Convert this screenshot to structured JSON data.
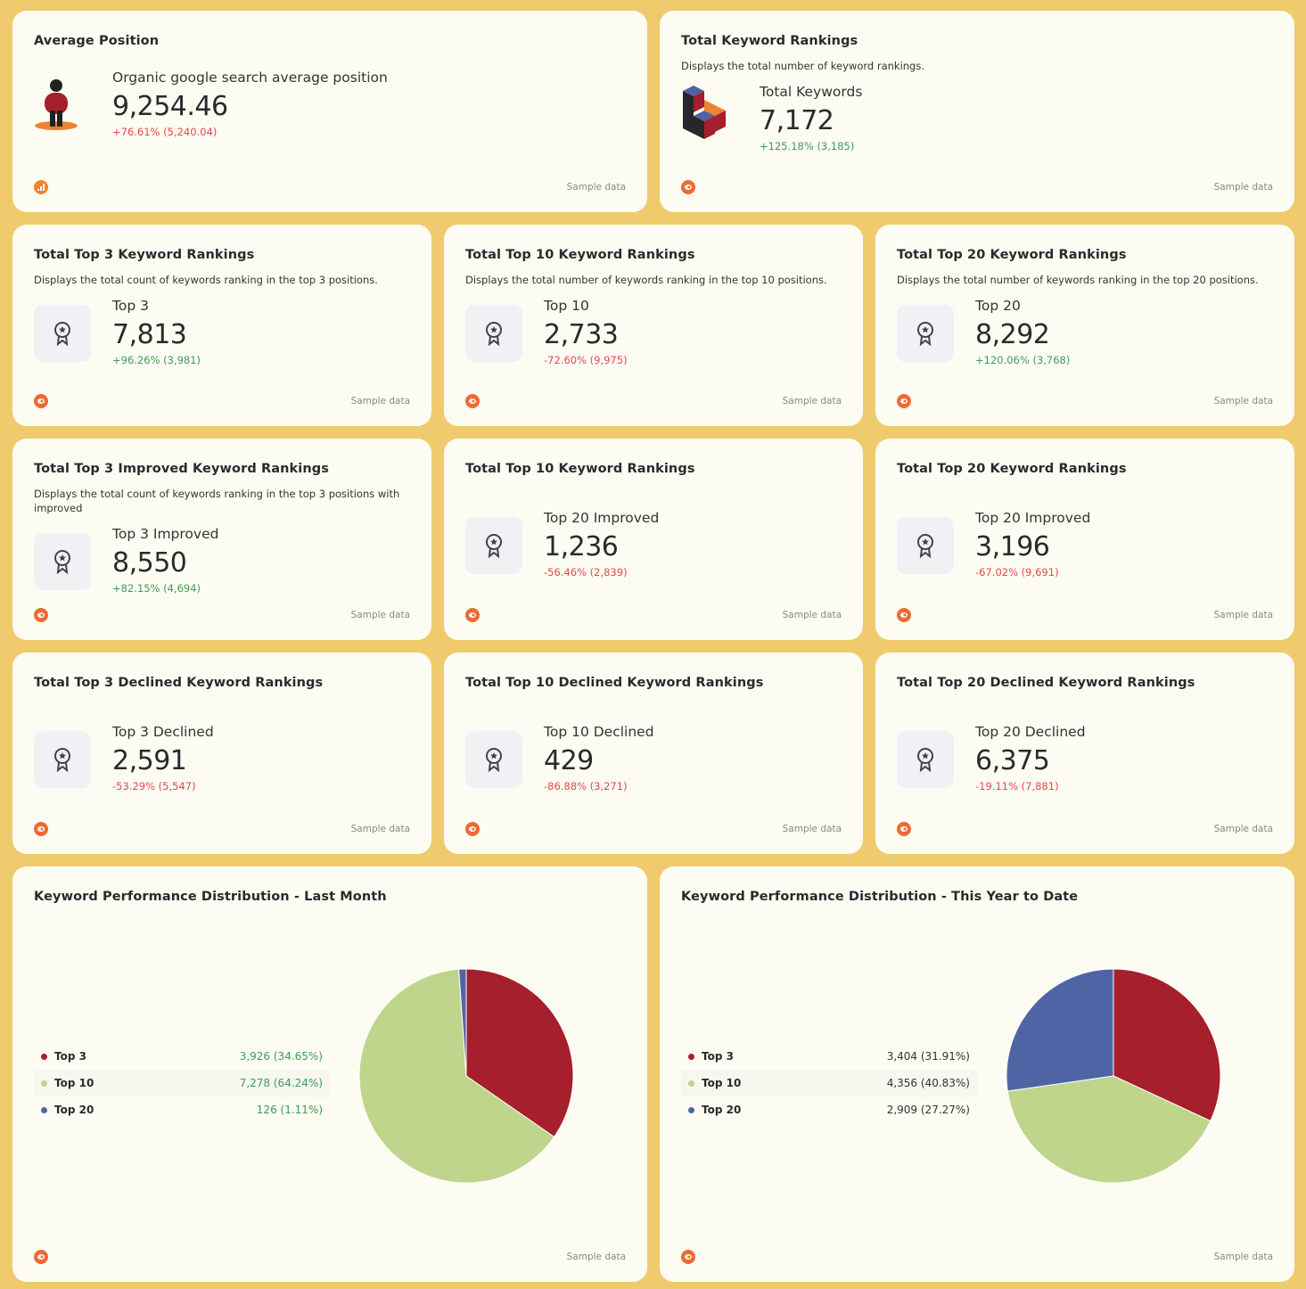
{
  "colors": {
    "top3": "#a51f2c",
    "top10": "#bed58b",
    "top20": "#4f64a4",
    "positive": "#3f9b5a",
    "negative": "#e5484d",
    "brand": "#ef6a33"
  },
  "footer_label": "Sample data",
  "cards": [
    {
      "title": "Average Position",
      "description": "",
      "label": "Organic google search average position",
      "value": "9,254.46",
      "change": "+76.61% (5,240.04)",
      "trend": "negative",
      "icon": "person-standing-icon",
      "brand_icon": "analytics-icon"
    },
    {
      "title": "Total Keyword Rankings",
      "description": "Displays the total number of keyword rankings.",
      "label": "Total Keywords",
      "value": "7,172",
      "change": "+125.18% (3,185)",
      "trend": "positive",
      "icon": "blocks-icon",
      "brand_icon": "semrush-icon"
    },
    {
      "title": "Total Top 3 Keyword Rankings",
      "description": "Displays the total count of keywords ranking in the top 3 positions.",
      "label": "Top 3",
      "value": "7,813",
      "change": "+96.26% (3,981)",
      "trend": "positive",
      "icon": "award-icon",
      "brand_icon": "semrush-icon"
    },
    {
      "title": "Total Top 10 Keyword Rankings",
      "description": "Displays the total number of keywords ranking in the top 10 positions.",
      "label": "Top 10",
      "value": "2,733",
      "change": "-72.60% (9,975)",
      "trend": "negative",
      "icon": "award-icon",
      "brand_icon": "semrush-icon"
    },
    {
      "title": "Total Top 20 Keyword Rankings",
      "description": "Displays the total number of keywords ranking in the top 20 positions.",
      "label": "Top 20",
      "value": "8,292",
      "change": "+120.06% (3,768)",
      "trend": "positive",
      "icon": "award-icon",
      "brand_icon": "semrush-icon"
    },
    {
      "title": "Total Top 3 Improved Keyword Rankings",
      "description": "Displays the total count of keywords ranking in the top 3 positions with improved",
      "label": "Top 3 Improved",
      "value": "8,550",
      "change": "+82.15% (4,694)",
      "trend": "positive",
      "icon": "award-icon",
      "brand_icon": "semrush-icon"
    },
    {
      "title": "Total Top 10 Keyword Rankings",
      "description": "",
      "label": "Top 20 Improved",
      "value": "1,236",
      "change": "-56.46% (2,839)",
      "trend": "negative",
      "icon": "award-icon",
      "brand_icon": "semrush-icon"
    },
    {
      "title": "Total Top 20 Keyword Rankings",
      "description": "",
      "label": "Top 20 Improved",
      "value": "3,196",
      "change": "-67.02% (9,691)",
      "trend": "negative",
      "icon": "award-icon",
      "brand_icon": "semrush-icon"
    },
    {
      "title": "Total Top 3 Declined Keyword Rankings",
      "description": "",
      "label": "Top 3 Declined",
      "value": "2,591",
      "change": "-53.29% (5,547)",
      "trend": "negative",
      "icon": "award-icon",
      "brand_icon": "semrush-icon"
    },
    {
      "title": "Total Top 10 Declined Keyword Rankings",
      "description": "",
      "label": "Top 10 Declined",
      "value": "429",
      "change": "-86.88% (3,271)",
      "trend": "negative",
      "icon": "award-icon",
      "brand_icon": "semrush-icon"
    },
    {
      "title": "Total Top 20 Declined Keyword Rankings",
      "description": "",
      "label": "Top 20 Declined",
      "value": "6,375",
      "change": "-19.11% (7,881)",
      "trend": "negative",
      "icon": "award-icon",
      "brand_icon": "semrush-icon"
    }
  ],
  "chart_data": [
    {
      "type": "pie",
      "title": "Keyword Performance Distribution - Last Month",
      "categories": [
        "Top 3",
        "Top 10",
        "Top 20"
      ],
      "values": [
        3926,
        7278,
        126
      ],
      "labels": [
        "3,926 (34.65%)",
        "7,278 (64.24%)",
        "126 (1.11%)"
      ],
      "percent": [
        34.65,
        64.24,
        1.11
      ],
      "value_color": "positive",
      "legend": "left"
    },
    {
      "type": "pie",
      "title": "Keyword Performance Distribution - This Year to Date",
      "categories": [
        "Top 3",
        "Top 10",
        "Top 20"
      ],
      "values": [
        3404,
        4356,
        2909
      ],
      "labels": [
        "3,404 (31.91%)",
        "4,356 (40.83%)",
        "2,909 (27.27%)"
      ],
      "percent": [
        31.91,
        40.83,
        27.27
      ],
      "value_color": "neutral",
      "legend": "left"
    }
  ]
}
